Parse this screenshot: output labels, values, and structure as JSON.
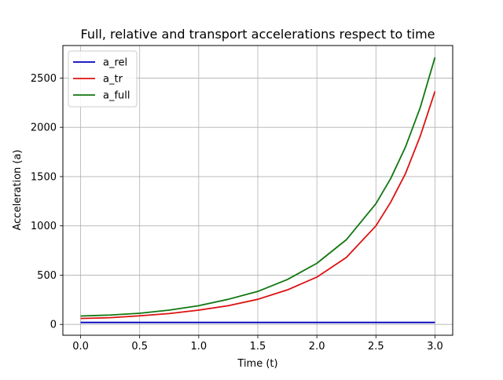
{
  "chart_data": {
    "type": "line",
    "title": "Full, relative and transport accelerations respect to time",
    "xlabel": "Time (t)",
    "ylabel": "Acceleration (a)",
    "xlim": [
      -0.15,
      3.15
    ],
    "ylim": [
      -110,
      2830
    ],
    "xticks": [
      0.0,
      0.5,
      1.0,
      1.5,
      2.0,
      2.5,
      3.0
    ],
    "xtick_labels": [
      "0.0",
      "0.5",
      "1.0",
      "1.5",
      "2.0",
      "2.5",
      "3.0"
    ],
    "yticks": [
      0,
      500,
      1000,
      1500,
      2000,
      2500
    ],
    "ytick_labels": [
      "0",
      "500",
      "1000",
      "1500",
      "2000",
      "2500"
    ],
    "grid": true,
    "legend_position": "top-left",
    "x": [
      0.0,
      0.25,
      0.5,
      0.75,
      1.0,
      1.25,
      1.5,
      1.75,
      2.0,
      2.25,
      2.5,
      2.625,
      2.75,
      2.875,
      3.0
    ],
    "series": [
      {
        "name": "a_rel",
        "color": "#0000bf",
        "values": [
          20,
          20,
          20,
          20,
          20,
          20,
          20,
          20,
          20,
          20,
          20,
          20,
          20,
          20,
          20
        ]
      },
      {
        "name": "a_tr",
        "color": "#dd1111",
        "values": [
          60,
          68,
          87,
          110,
          145,
          190,
          255,
          350,
          480,
          680,
          1000,
          1240,
          1530,
          1910,
          2365
        ]
      },
      {
        "name": "a_full",
        "color": "#117711",
        "values": [
          85,
          95,
          113,
          145,
          190,
          255,
          335,
          455,
          620,
          860,
          1225,
          1480,
          1800,
          2200,
          2710
        ]
      }
    ]
  }
}
